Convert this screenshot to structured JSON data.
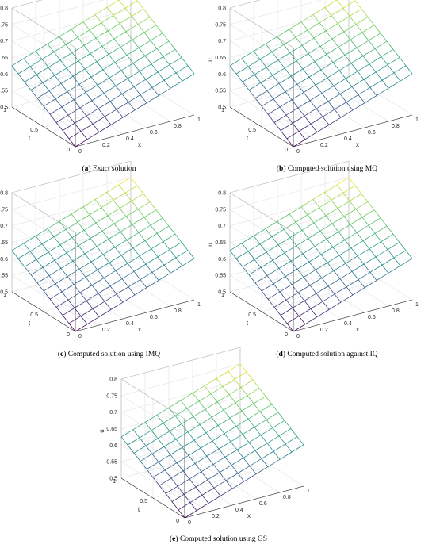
{
  "chart_data": [
    {
      "type": "surface",
      "panel_letter": "a",
      "caption_text": "Exact solution",
      "xlabel": "x",
      "ylabel": "t",
      "zlabel": "u",
      "xlim": [
        0,
        1
      ],
      "ylim": [
        0,
        1
      ],
      "zlim": [
        0.5,
        0.8
      ],
      "x_ticks": [
        "0",
        "0.2",
        "0.4",
        "0.6",
        "0.8",
        "1"
      ],
      "t_ticks": [
        "0",
        "0.5",
        "1"
      ],
      "u_ticks": [
        "0.5",
        "0.55",
        "0.6",
        "0.65",
        "0.7",
        "0.75",
        "0.8"
      ],
      "grid": true,
      "corner_values": {
        "x0_t0": 0.5,
        "x1_t0": 0.625,
        "x0_t1": 0.625,
        "x1_t1": 0.75
      }
    },
    {
      "type": "surface",
      "panel_letter": "b",
      "caption_text": "Computed solution using MQ",
      "xlabel": "x",
      "ylabel": "t",
      "zlabel": "u",
      "xlim": [
        0,
        1
      ],
      "ylim": [
        0,
        1
      ],
      "zlim": [
        0.5,
        0.8
      ],
      "x_ticks": [
        "0",
        "0.2",
        "0.4",
        "0.6",
        "0.8",
        "1"
      ],
      "t_ticks": [
        "0",
        "0.5",
        "1"
      ],
      "u_ticks": [
        "0.5",
        "0.55",
        "0.6",
        "0.65",
        "0.7",
        "0.75",
        "0.8"
      ],
      "grid": true,
      "corner_values": {
        "x0_t0": 0.5,
        "x1_t0": 0.625,
        "x0_t1": 0.625,
        "x1_t1": 0.75
      }
    },
    {
      "type": "surface",
      "panel_letter": "c",
      "caption_text": "Computed solution using IMQ",
      "xlabel": "x",
      "ylabel": "t",
      "zlabel": "u",
      "xlim": [
        0,
        1
      ],
      "ylim": [
        0,
        1
      ],
      "zlim": [
        0.5,
        0.8
      ],
      "x_ticks": [
        "0",
        "0.2",
        "0.4",
        "0.6",
        "0.8",
        "1"
      ],
      "t_ticks": [
        "0",
        "0.5",
        "1"
      ],
      "u_ticks": [
        "0.5",
        "0.55",
        "0.6",
        "0.65",
        "0.7",
        "0.75",
        "0.8"
      ],
      "grid": true,
      "corner_values": {
        "x0_t0": 0.5,
        "x1_t0": 0.625,
        "x0_t1": 0.625,
        "x1_t1": 0.75
      }
    },
    {
      "type": "surface",
      "panel_letter": "d",
      "caption_text": "Computed solution against IQ",
      "xlabel": "x",
      "ylabel": "t",
      "zlabel": "u",
      "xlim": [
        0,
        1
      ],
      "ylim": [
        0,
        1
      ],
      "zlim": [
        0.5,
        0.8
      ],
      "x_ticks": [
        "0",
        "0.2",
        "0.4",
        "0.6",
        "0.8",
        "1"
      ],
      "t_ticks": [
        "0",
        "0.5",
        "1"
      ],
      "u_ticks": [
        "0.5",
        "0.55",
        "0.6",
        "0.65",
        "0.7",
        "0.75",
        "0.8"
      ],
      "grid": true,
      "corner_values": {
        "x0_t0": 0.5,
        "x1_t0": 0.625,
        "x0_t1": 0.625,
        "x1_t1": 0.75
      }
    },
    {
      "type": "surface",
      "panel_letter": "e",
      "caption_text": "Computed solution using GS",
      "xlabel": "x",
      "ylabel": "t",
      "zlabel": "u",
      "xlim": [
        0,
        1
      ],
      "ylim": [
        0,
        1
      ],
      "zlim": [
        0.5,
        0.8
      ],
      "x_ticks": [
        "0",
        "0.2",
        "0.4",
        "0.6",
        "0.8",
        "1"
      ],
      "t_ticks": [
        "0",
        "0.5",
        "1"
      ],
      "u_ticks": [
        "0.5",
        "0.55",
        "0.6",
        "0.65",
        "0.7",
        "0.75",
        "0.8"
      ],
      "grid": true,
      "corner_values": {
        "x0_t0": 0.5,
        "x1_t0": 0.625,
        "x0_t1": 0.625,
        "x1_t1": 0.75
      }
    }
  ],
  "colormap": [
    "#440154",
    "#3b528b",
    "#21918c",
    "#5ec962",
    "#fde725"
  ]
}
